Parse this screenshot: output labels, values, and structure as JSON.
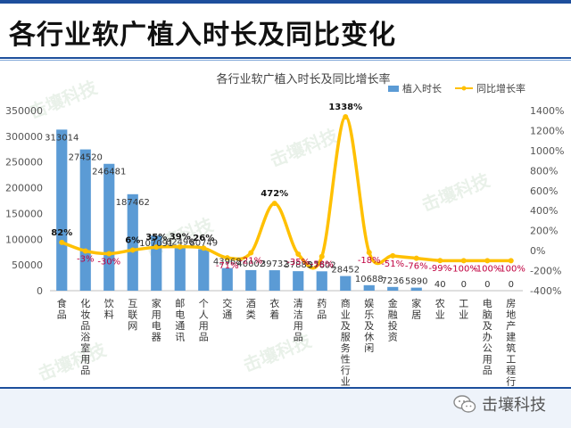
{
  "slide": {
    "title": "各行业软广植入时长及同比变化",
    "brand": "击壤科技",
    "watermark": "击壤科技"
  },
  "colors": {
    "bar": "#5b9bd5",
    "line": "#ffc000",
    "title_band": "#1d4f9c"
  },
  "chart_data": {
    "type": "bar",
    "title": "各行业软广植入时长及同比增长率",
    "categories": [
      "食品",
      "化妆品浴室用品",
      "饮料",
      "互联网",
      "家用电器",
      "邮电通讯",
      "个人用品",
      "交通",
      "酒类",
      "衣着",
      "清洁用品",
      "药品",
      "商业及服务性行业",
      "娱乐及休闲",
      "金融投资",
      "家居",
      "农业",
      "工业",
      "电脑及办公用品",
      "房地产建筑工程行业"
    ],
    "series": [
      {
        "name": "植入时长",
        "type": "bar",
        "axis": "left",
        "color": "#5b9bd5",
        "values": [
          313014,
          274520,
          246481,
          187462,
          107091,
          82496,
          80749,
          43968,
          40002,
          39732,
          37885,
          37602,
          28452,
          10688,
          7236,
          5890,
          40,
          0,
          0,
          0
        ],
        "labels": [
          "313014",
          "274520",
          "246481",
          "187462",
          "107091",
          "82496",
          "80749",
          "43968",
          "40002",
          "39732",
          "37885",
          "37602",
          "28452",
          "10688",
          "7236",
          "5890",
          "40",
          "0",
          "0",
          "0"
        ]
      },
      {
        "name": "同比增长率",
        "type": "line",
        "axis": "right",
        "color": "#ffc000",
        "values": [
          82,
          -3,
          -30,
          6,
          35,
          39,
          26,
          -71,
          -21,
          472,
          -35,
          -58,
          1338,
          -18,
          -51,
          -76,
          -99,
          -100,
          -100,
          -100
        ],
        "labels": [
          "82%",
          "-3%",
          "-30%",
          "6%",
          "35%",
          "39%",
          "26%",
          "-71%",
          "-21%",
          "472%",
          "-35%",
          "-58%",
          "1338%",
          "-18%",
          "-51%",
          "-76%",
          "-99%",
          "-100%",
          "-100%",
          "-100%"
        ]
      }
    ],
    "y_left": {
      "min": 0,
      "max": 350000,
      "ticks": [
        "0",
        "50000",
        "100000",
        "150000",
        "200000",
        "250000",
        "300000",
        "350000"
      ]
    },
    "y_right": {
      "min": -400,
      "max": 1400,
      "ticks": [
        "-400%",
        "-200%",
        "0%",
        "200%",
        "400%",
        "600%",
        "800%",
        "1000%",
        "1200%",
        "1400%"
      ]
    },
    "legend_position": "top-right",
    "grid": false
  }
}
